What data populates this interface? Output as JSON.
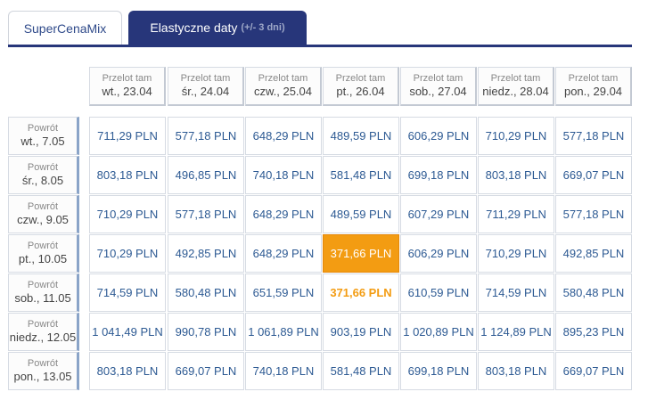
{
  "tabs": {
    "supercenamix": "SuperCenaMix",
    "elastic": "Elastyczne daty",
    "elastic_suffix": "(+/- 3 dni)"
  },
  "columns": [
    {
      "label": "Przelot tam",
      "date": "wt., 23.04"
    },
    {
      "label": "Przelot tam",
      "date": "śr., 24.04"
    },
    {
      "label": "Przelot tam",
      "date": "czw., 25.04"
    },
    {
      "label": "Przelot tam",
      "date": "pt., 26.04"
    },
    {
      "label": "Przelot tam",
      "date": "sob., 27.04"
    },
    {
      "label": "Przelot tam",
      "date": "niedz., 28.04"
    },
    {
      "label": "Przelot tam",
      "date": "pon., 29.04"
    }
  ],
  "rows": [
    {
      "label": "Powrót",
      "date": "wt., 7.05",
      "prices": [
        "711,29 PLN",
        "577,18 PLN",
        "648,29 PLN",
        "489,59 PLN",
        "606,29 PLN",
        "710,29 PLN",
        "577,18 PLN"
      ]
    },
    {
      "label": "Powrót",
      "date": "śr., 8.05",
      "prices": [
        "803,18 PLN",
        "496,85 PLN",
        "740,18 PLN",
        "581,48 PLN",
        "699,18 PLN",
        "803,18 PLN",
        "669,07 PLN"
      ]
    },
    {
      "label": "Powrót",
      "date": "czw., 9.05",
      "prices": [
        "710,29 PLN",
        "577,18 PLN",
        "648,29 PLN",
        "489,59 PLN",
        "607,29 PLN",
        "711,29 PLN",
        "577,18 PLN"
      ]
    },
    {
      "label": "Powrót",
      "date": "pt., 10.05",
      "prices": [
        "710,29 PLN",
        "492,85 PLN",
        "648,29 PLN",
        "371,66 PLN",
        "606,29 PLN",
        "710,29 PLN",
        "492,85 PLN"
      ]
    },
    {
      "label": "Powrót",
      "date": "sob., 11.05",
      "prices": [
        "714,59 PLN",
        "580,48 PLN",
        "651,59 PLN",
        "371,66 PLN",
        "610,59 PLN",
        "714,59 PLN",
        "580,48 PLN"
      ]
    },
    {
      "label": "Powrót",
      "date": "niedz., 12.05",
      "prices": [
        "1 041,49 PLN",
        "990,78 PLN",
        "1 061,89 PLN",
        "903,19 PLN",
        "1 020,89 PLN",
        "1 124,89 PLN",
        "895,23 PLN"
      ]
    },
    {
      "label": "Powrót",
      "date": "pon., 13.05",
      "prices": [
        "803,18 PLN",
        "669,07 PLN",
        "740,18 PLN",
        "581,48 PLN",
        "699,18 PLN",
        "803,18 PLN",
        "669,07 PLN"
      ]
    }
  ],
  "highlight": {
    "selected": {
      "row": 3,
      "col": 3
    },
    "cheapest_text": [
      {
        "row": 4,
        "col": 3
      }
    ]
  },
  "colors": {
    "accent": "#27367a",
    "highlight": "#f39c12",
    "price_text": "#2d5a93"
  }
}
